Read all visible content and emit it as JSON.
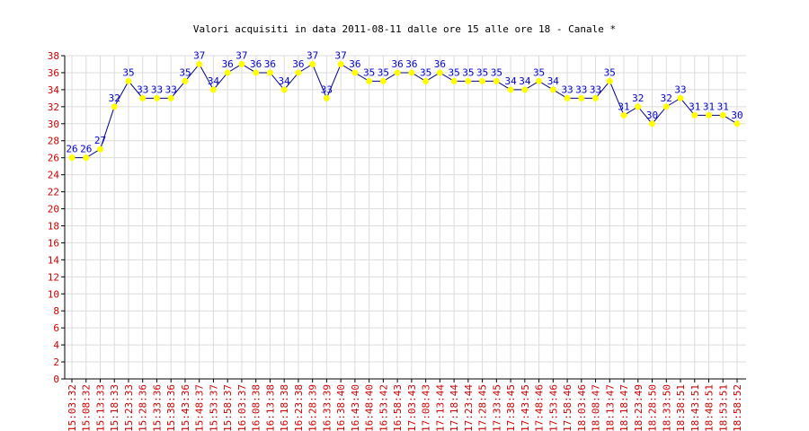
{
  "chart_data": {
    "type": "line",
    "title": "Valori acquisiti in data 2011-08-11  dalle ore 15  alle ore 18 - Canale *",
    "xlabel": "",
    "ylabel": "",
    "ylim": [
      0,
      38
    ],
    "ytick_step": 2,
    "grid": true,
    "x": [
      "15:03:32",
      "15:08:32",
      "15:13:33",
      "15:18:33",
      "15:23:33",
      "15:28:36",
      "15:33:36",
      "15:38:36",
      "15:43:36",
      "15:48:37",
      "15:53:37",
      "15:58:37",
      "16:03:37",
      "16:08:38",
      "16:13:38",
      "16:18:38",
      "16:23:38",
      "16:28:39",
      "16:33:39",
      "16:38:40",
      "16:43:40",
      "16:48:40",
      "16:53:42",
      "16:58:43",
      "17:03:43",
      "17:08:43",
      "17:13:44",
      "17:18:44",
      "17:23:44",
      "17:28:45",
      "17:33:45",
      "17:38:45",
      "17:43:45",
      "17:48:46",
      "17:53:46",
      "17:58:46",
      "18:03:46",
      "18:08:47",
      "18:13:47",
      "18:18:47",
      "18:23:49",
      "18:28:50",
      "18:33:50",
      "18:38:51",
      "18:43:51",
      "18:48:51",
      "18:53:51",
      "18:58:52"
    ],
    "series": [
      {
        "values": [
          26,
          26,
          27,
          32,
          35,
          33,
          33,
          33,
          35,
          37,
          34,
          36,
          37,
          36,
          36,
          34,
          36,
          37,
          33,
          37,
          36,
          35,
          35,
          36,
          36,
          35,
          36,
          35,
          35,
          35,
          35,
          34,
          34,
          35,
          34,
          33,
          33,
          33,
          35,
          31,
          32,
          30,
          32,
          33,
          31,
          31,
          31,
          30
        ]
      }
    ],
    "colors": {
      "line": "#000080",
      "marker": "#ffff00",
      "data_label": "#0000cc",
      "tick_label": "#cc0000",
      "grid": "#dcdcdc",
      "axis": "#000000"
    }
  }
}
